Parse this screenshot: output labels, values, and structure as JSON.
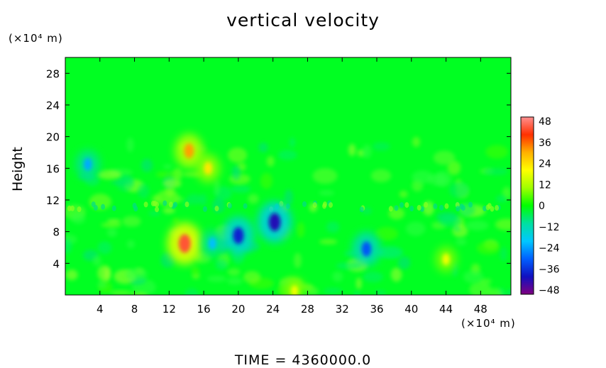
{
  "chart_data": {
    "type": "heatmap",
    "title": "vertical velocity",
    "xlabel": "",
    "ylabel": "Height",
    "x_unit_label": "(×10⁴ m)",
    "y_unit_label": "(×10⁴ m)",
    "footer": "TIME  =  4360000.0",
    "xlim": [
      0,
      51.5
    ],
    "ylim": [
      0,
      30
    ],
    "x_ticks": [
      4,
      8,
      12,
      16,
      20,
      24,
      28,
      32,
      36,
      40,
      44,
      48
    ],
    "y_ticks": [
      4,
      8,
      12,
      16,
      20,
      24,
      28
    ],
    "colorbar": {
      "ticks": [
        48,
        36,
        24,
        12,
        0,
        -12,
        -24,
        -36,
        -48
      ],
      "range": [
        -48,
        48
      ],
      "colors": [
        "#800080",
        "#1010c0",
        "#0060ff",
        "#00c8ff",
        "#00e0a0",
        "#00ff00",
        "#a0ff00",
        "#ffff00",
        "#ffb000",
        "#ff3000",
        "#ff9090"
      ]
    },
    "background_value": 0,
    "features": [
      {
        "x": 13.8,
        "y": 6.5,
        "value": 42
      },
      {
        "x": 14.3,
        "y": 18.2,
        "value": 30
      },
      {
        "x": 16.5,
        "y": 16.0,
        "value": 22
      },
      {
        "x": 44.0,
        "y": 4.5,
        "value": 18
      },
      {
        "x": 20.0,
        "y": 7.5,
        "value": -36
      },
      {
        "x": 24.2,
        "y": 9.2,
        "value": -40
      },
      {
        "x": 34.8,
        "y": 5.8,
        "value": -30
      },
      {
        "x": 17.0,
        "y": 6.5,
        "value": -20
      },
      {
        "x": 2.6,
        "y": 16.5,
        "value": -22
      },
      {
        "x": 26.5,
        "y": 0.5,
        "value": 18
      }
    ]
  }
}
